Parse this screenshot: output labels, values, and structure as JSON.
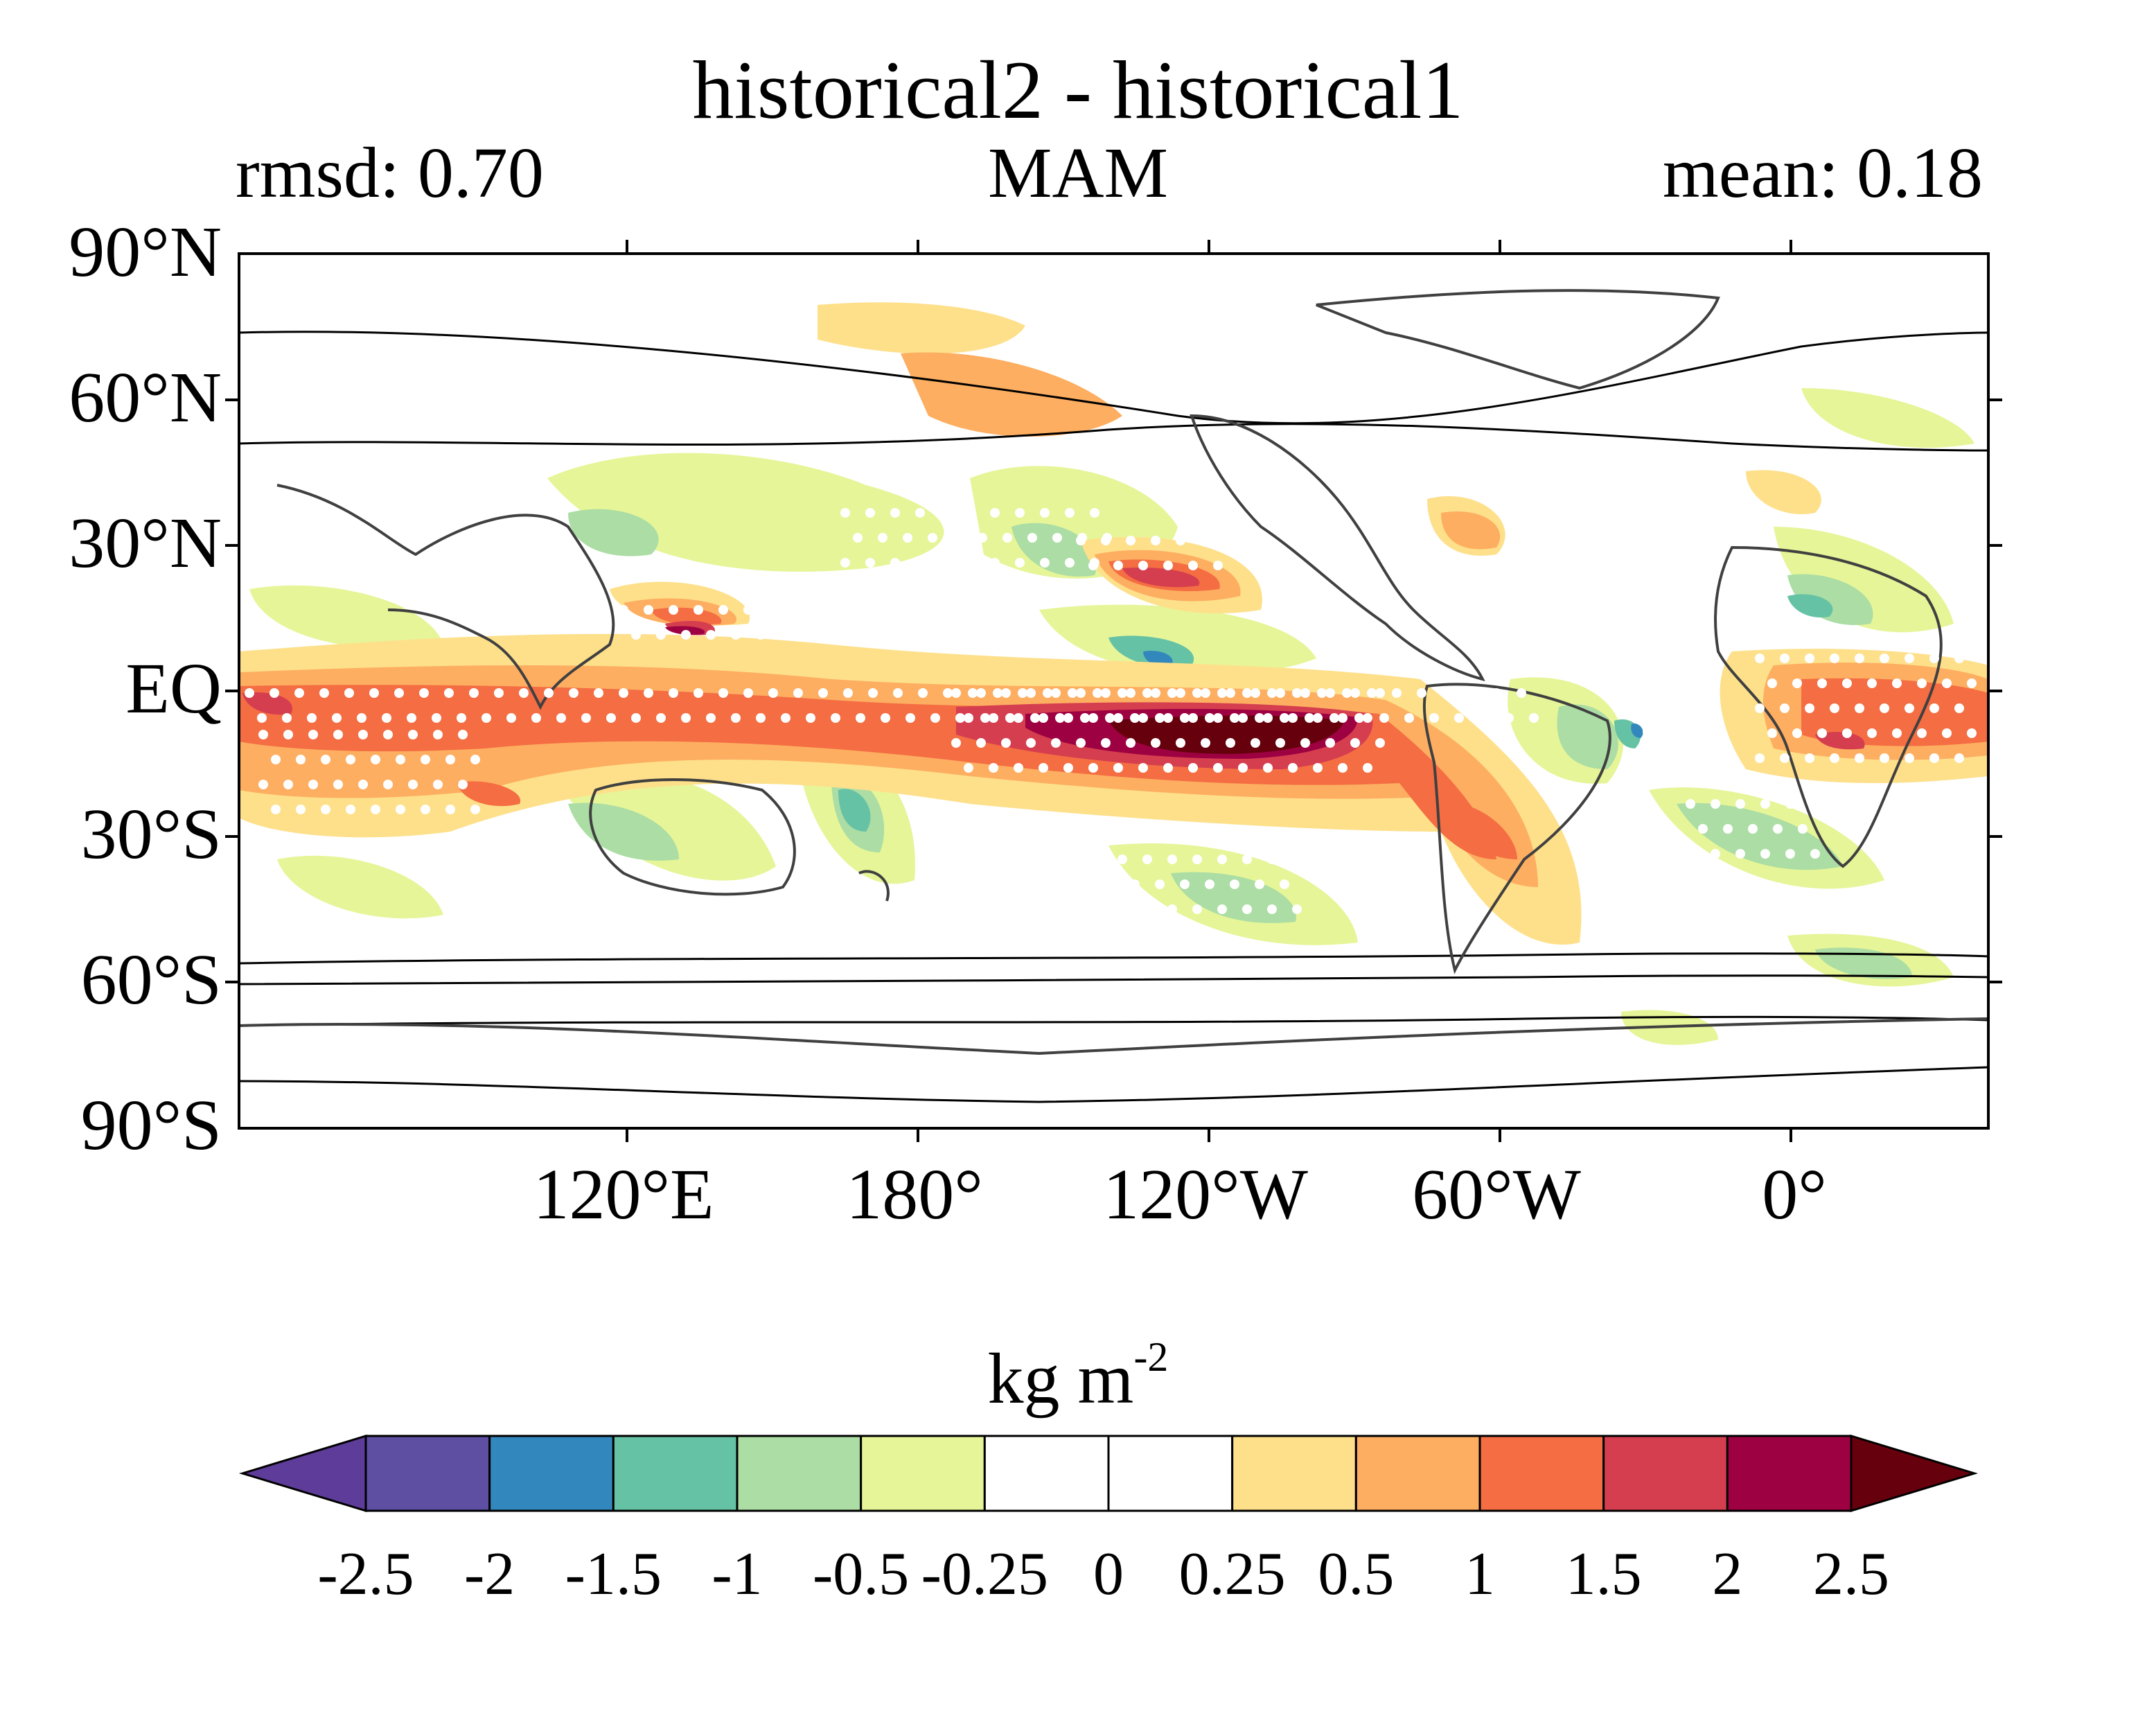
{
  "title": "historical2 - historical1",
  "season": "MAM",
  "rmsd_text": "rmsd: 0.70",
  "mean_text": "mean: 0.18",
  "units": {
    "base": "kg m",
    "exponent": "-2"
  },
  "axes": {
    "lat_labels": [
      "90°N",
      "60°N",
      "30°N",
      "EQ",
      "30°S",
      "60°S",
      "90°S"
    ],
    "lon_labels": [
      "120°E",
      "180°",
      "120°W",
      "60°W",
      "0°"
    ]
  },
  "colorbar": {
    "levels": [
      "-2.5",
      "-2",
      "-1.5",
      "-1",
      "-0.5",
      "-0.25",
      "0",
      "0.25",
      "0.5",
      "1",
      "1.5",
      "2",
      "2.5"
    ],
    "colors": [
      "#5e3c99",
      "#5e4fa2",
      "#3288bd",
      "#66c2a5",
      "#abdda4",
      "#e6f598",
      "#ffffff",
      "#ffffff",
      "#fee08b",
      "#fdae61",
      "#f46d43",
      "#d53e4f",
      "#9e0142",
      "#67000d"
    ]
  },
  "map": {
    "projection": "equirectangular",
    "central_longitude": "centered near 150°W (Pacific-centred)",
    "stippling": "white dots mark significant differences",
    "contours": "black outline contours"
  }
}
